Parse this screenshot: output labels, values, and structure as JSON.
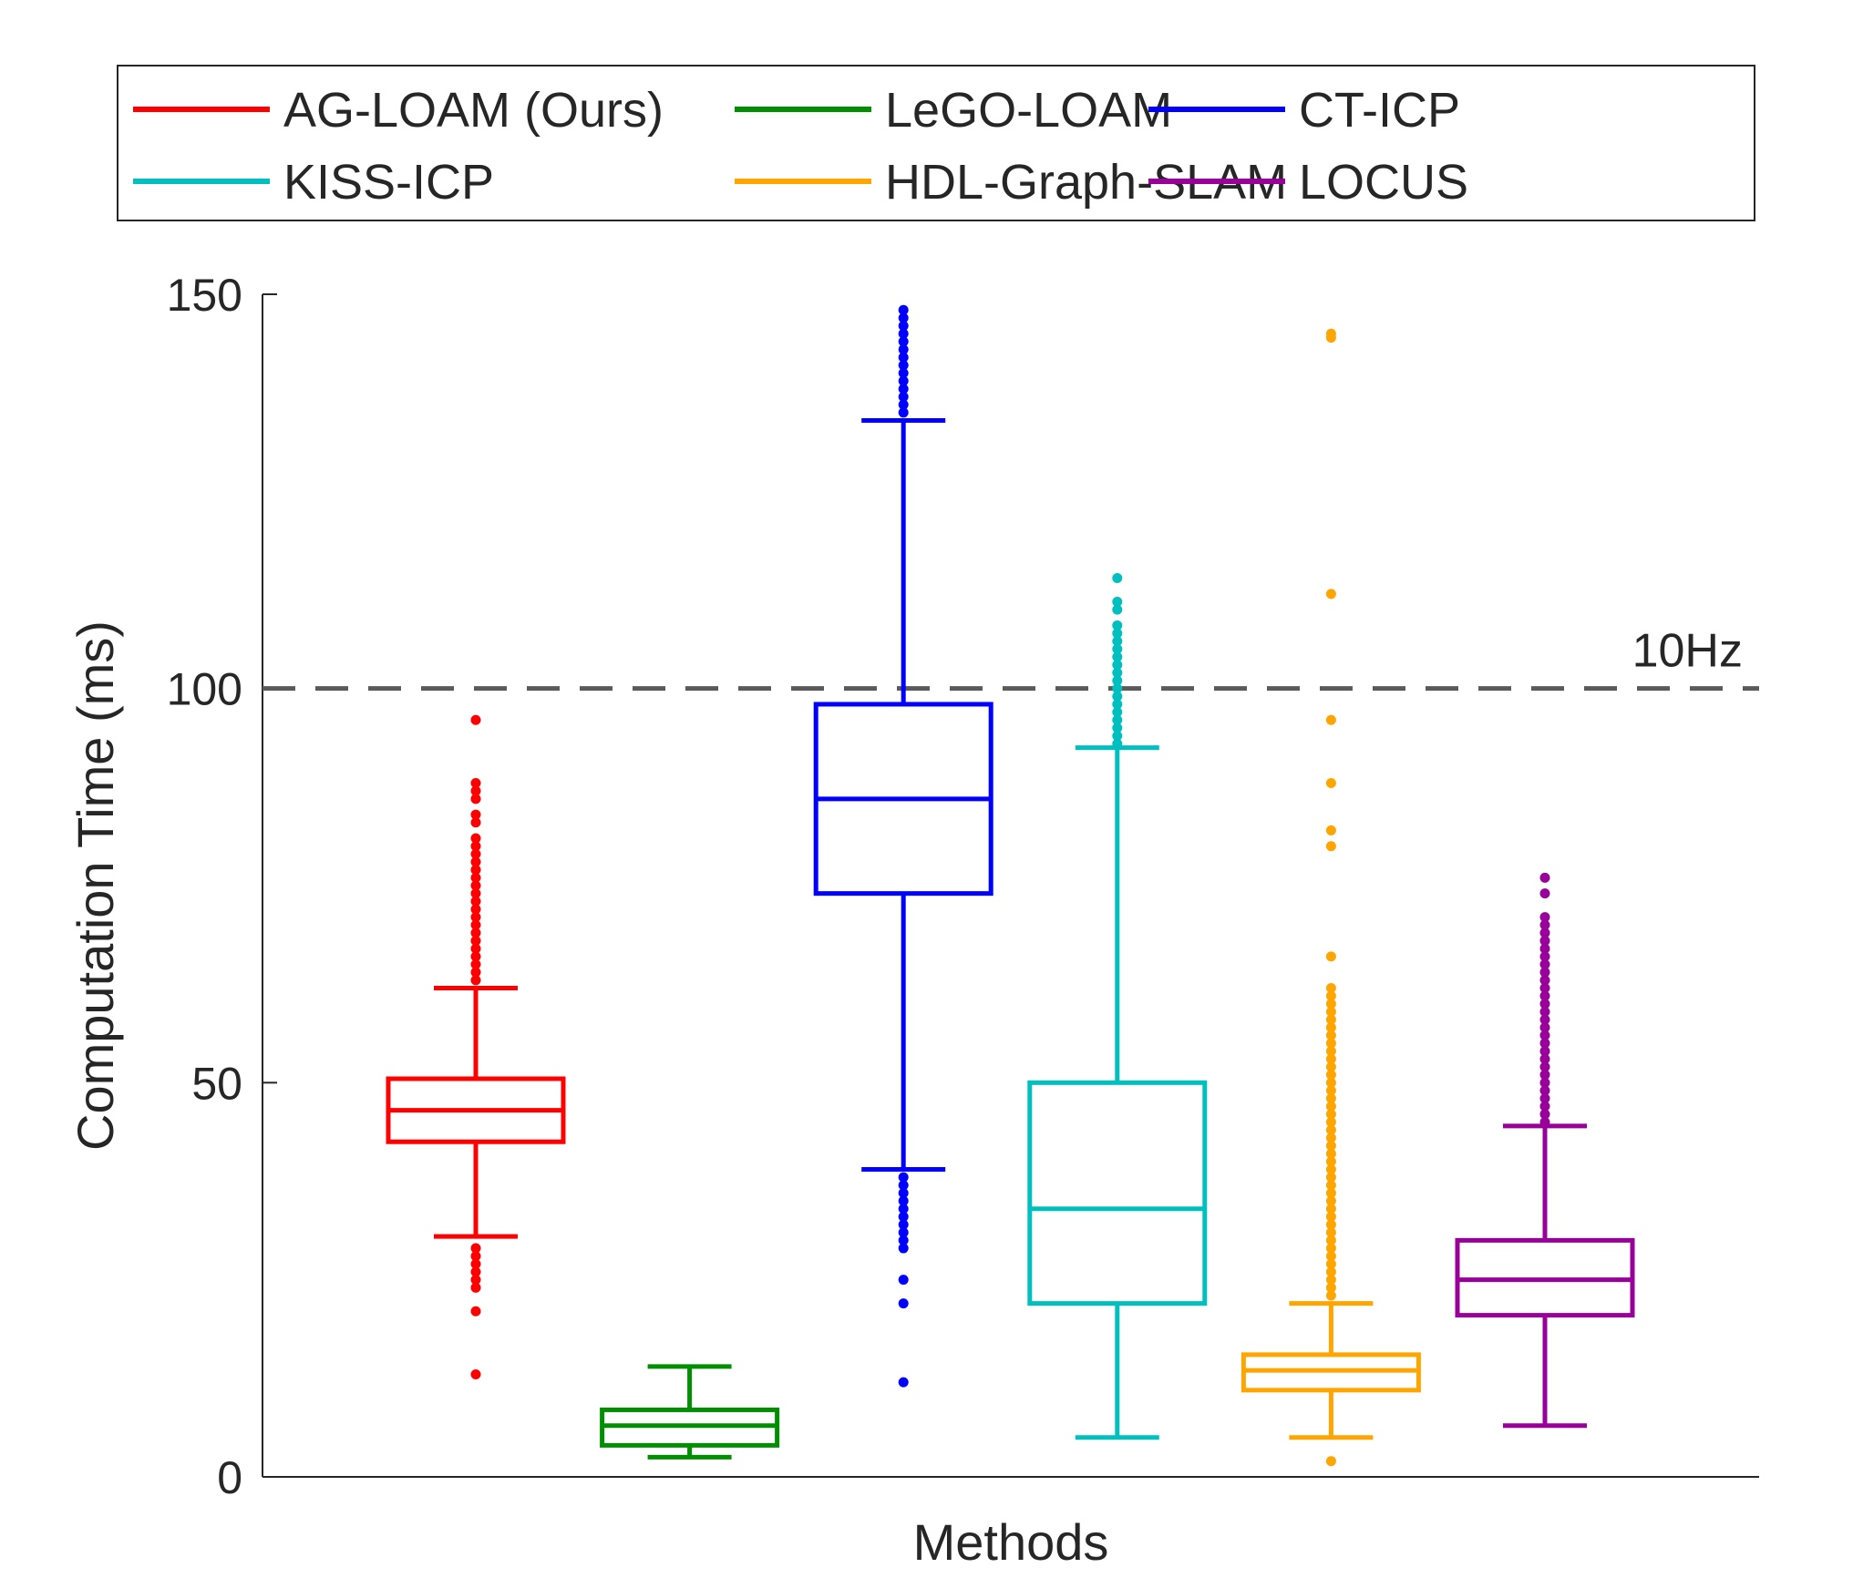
{
  "chart_data": {
    "type": "boxplot",
    "title": "",
    "xlabel": "Methods",
    "ylabel": "Computation Time (ms)",
    "ylim": [
      0,
      150
    ],
    "yticks": [
      0,
      50,
      100,
      150
    ],
    "grid": false,
    "legend_position": "top",
    "reference_line": {
      "y": 100,
      "label": "10Hz",
      "color": "#5a5a5a",
      "style": "dashed"
    },
    "series": [
      {
        "name": "AG-LOAM (Ours)",
        "color": "#ff0000",
        "q1": 42.5,
        "median": 46.5,
        "q3": 50.5,
        "whisker_low": 30.5,
        "whisker_high": 62,
        "outliers_high": [
          63,
          64,
          65,
          66,
          67,
          68,
          69,
          70,
          71,
          72,
          73,
          74,
          75,
          76,
          77,
          78,
          79,
          80,
          81,
          83,
          84,
          86,
          87,
          88,
          96
        ],
        "outliers_low": [
          29,
          28,
          27,
          26,
          25,
          24,
          21,
          13
        ]
      },
      {
        "name": "LeGO-LOAM",
        "color": "#008f00",
        "q1": 4,
        "median": 6.5,
        "q3": 8.5,
        "whisker_low": 2.5,
        "whisker_high": 14,
        "outliers_high": [],
        "outliers_low": []
      },
      {
        "name": "CT-ICP",
        "color": "#0000ff",
        "q1": 74,
        "median": 86,
        "q3": 98,
        "whisker_low": 39,
        "whisker_high": 134,
        "outliers_high": [
          135,
          136,
          137,
          138,
          139,
          140,
          141,
          142,
          143,
          144,
          145,
          146,
          147,
          148
        ],
        "outliers_low": [
          38,
          37,
          36,
          35,
          34,
          33,
          32,
          31,
          30,
          29,
          25,
          22,
          12
        ]
      },
      {
        "name": "KISS-ICP",
        "color": "#00bfbf",
        "q1": 22,
        "median": 34,
        "q3": 50,
        "whisker_low": 5,
        "whisker_high": 92.5,
        "outliers_high": [
          93,
          94,
          95,
          96,
          97,
          98,
          99,
          100,
          101,
          102,
          103,
          104,
          105,
          106,
          107,
          108,
          110,
          111,
          114
        ],
        "outliers_low": []
      },
      {
        "name": "HDL-Graph-SLAM",
        "color": "#ffa500",
        "q1": 11,
        "median": 13.5,
        "q3": 15.5,
        "whisker_low": 5,
        "whisker_high": 22,
        "outliers_high": [
          23,
          24,
          25,
          26,
          27,
          28,
          29,
          30,
          31,
          32,
          33,
          34,
          35,
          36,
          37,
          38,
          39,
          40,
          41,
          42,
          43,
          44,
          45,
          46,
          47,
          48,
          49,
          50,
          51,
          52,
          53,
          54,
          55,
          56,
          57,
          58,
          59,
          60,
          61,
          62,
          66,
          80,
          82,
          88,
          96,
          112,
          144.5,
          145
        ],
        "outliers_low": [
          2
        ]
      },
      {
        "name": "LOCUS",
        "color": "#990099",
        "q1": 20.5,
        "median": 25,
        "q3": 30,
        "whisker_low": 6.5,
        "whisker_high": 44.5,
        "outliers_high": [
          45,
          46,
          47,
          48,
          49,
          50,
          51,
          52,
          53,
          54,
          55,
          56,
          57,
          58,
          59,
          60,
          61,
          62,
          63,
          64,
          65,
          66,
          67,
          68,
          69,
          70,
          71,
          74,
          76
        ],
        "outliers_low": []
      }
    ]
  }
}
